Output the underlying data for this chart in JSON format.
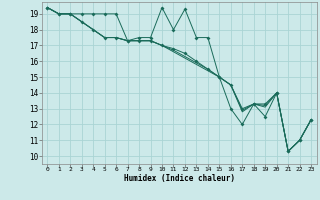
{
  "xlabel": "Humidex (Indice chaleur)",
  "bg_color": "#cce9e9",
  "grid_color": "#aad4d4",
  "line_color": "#1a6b5a",
  "xlim": [
    -0.5,
    23.5
  ],
  "ylim": [
    9.5,
    19.75
  ],
  "xticks": [
    0,
    1,
    2,
    3,
    4,
    5,
    6,
    7,
    8,
    9,
    10,
    11,
    12,
    13,
    14,
    15,
    16,
    17,
    18,
    19,
    20,
    21,
    22,
    23
  ],
  "yticks": [
    10,
    11,
    12,
    13,
    14,
    15,
    16,
    17,
    18,
    19
  ],
  "series": [
    [
      19.4,
      19.0,
      19.0,
      19.0,
      19.0,
      19.0,
      19.0,
      17.3,
      17.5,
      17.5,
      19.4,
      18.0,
      19.3,
      17.5,
      17.5,
      15.0,
      13.0,
      12.0,
      13.3,
      12.5,
      14.0,
      10.3,
      11.0,
      12.3
    ],
    [
      19.4,
      19.0,
      19.0,
      18.5,
      18.0,
      17.5,
      17.5,
      17.3,
      17.3,
      17.3,
      17.0,
      16.8,
      16.5,
      16.0,
      15.5,
      15.0,
      14.5,
      13.0,
      13.3,
      13.3,
      14.0,
      10.3,
      11.0,
      12.3
    ],
    [
      19.4,
      19.0,
      19.0,
      18.5,
      18.0,
      17.5,
      17.5,
      17.3,
      17.3,
      17.3,
      17.0,
      16.7,
      16.3,
      15.9,
      15.5,
      15.0,
      14.5,
      12.9,
      13.3,
      13.2,
      14.0,
      10.3,
      11.0,
      12.3
    ],
    [
      19.4,
      19.0,
      19.0,
      18.5,
      18.0,
      17.5,
      17.5,
      17.3,
      17.3,
      17.3,
      17.0,
      16.6,
      16.2,
      15.8,
      15.4,
      15.0,
      14.5,
      12.8,
      13.3,
      13.1,
      14.0,
      10.3,
      11.0,
      12.3
    ]
  ]
}
